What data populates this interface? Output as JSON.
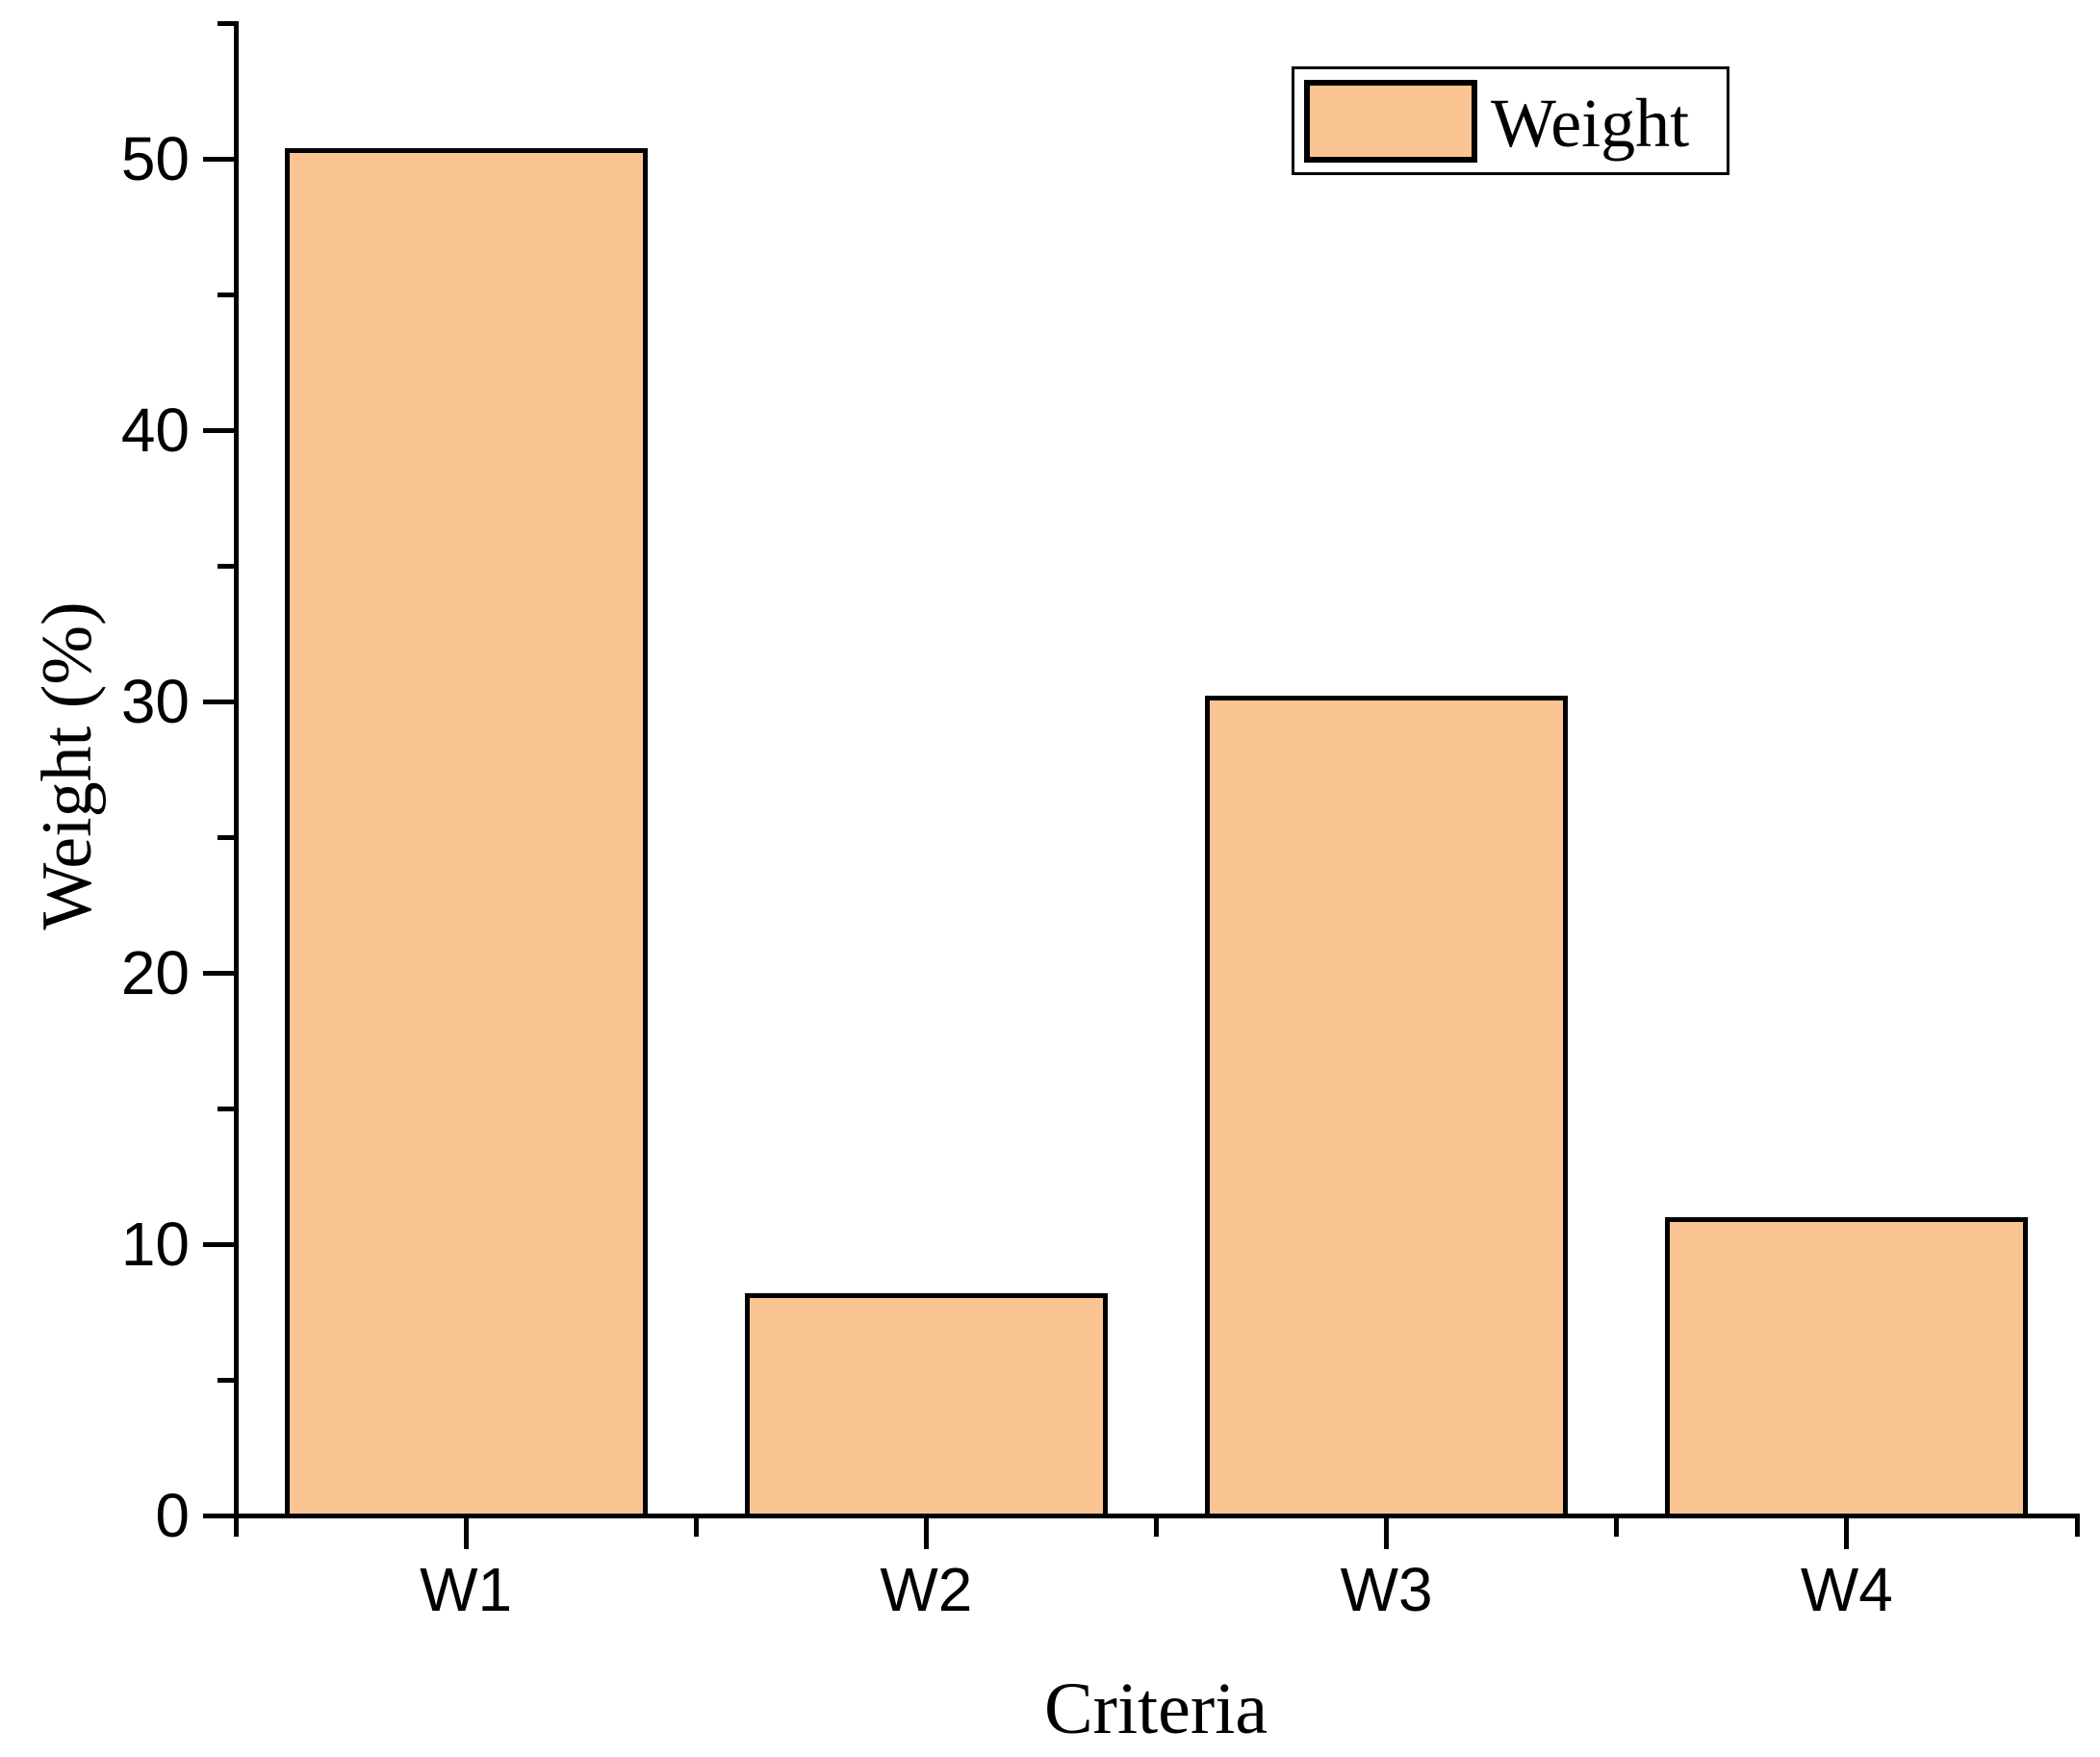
{
  "chart_data": {
    "type": "bar",
    "title": "",
    "categories": [
      "W1",
      "W2",
      "W3",
      "W4"
    ],
    "series": [
      {
        "name": "Weight",
        "values": [
          50.4,
          8.2,
          30.2,
          11.0
        ]
      }
    ],
    "xlabel": "Criteria",
    "ylabel": "Weight (%)",
    "ylim": [
      0,
      55
    ],
    "y_major_ticks": [
      0,
      10,
      20,
      30,
      40,
      50
    ],
    "y_minor_ticks": [
      5,
      15,
      25,
      35,
      45,
      55
    ],
    "grid": false,
    "bar_color": "#FBC593",
    "bar_border_color": "#000000",
    "axis_color": "#000000",
    "legend": {
      "position": "top-right",
      "entries": [
        {
          "label": "Weight",
          "swatch_color": "#FBC593"
        }
      ]
    }
  }
}
